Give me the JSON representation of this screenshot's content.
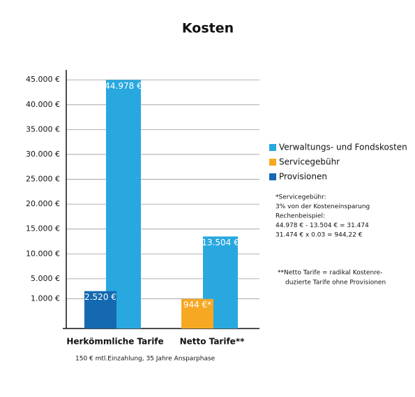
{
  "chart_data": {
    "type": "bar",
    "title": "Kosten",
    "categories": [
      "Herkömmliche Tarife",
      "Netto Tarife**"
    ],
    "series": [
      {
        "name": "Verwaltungs- und Fondskosten",
        "color": "#29a8e0",
        "values": [
          44978,
          13504
        ],
        "value_labels": [
          "44.978 €",
          "13.504 €"
        ]
      },
      {
        "name": "Servicegebühr",
        "color": "#f7a823",
        "values": [
          null,
          944
        ],
        "value_labels": [
          null,
          "944 €*"
        ]
      },
      {
        "name": "Provisionen",
        "color": "#1469b0",
        "values": [
          2520,
          null
        ],
        "value_labels": [
          "2.520 €",
          null
        ]
      }
    ],
    "ylim": [
      -5000,
      47000
    ],
    "yticks": [
      {
        "value": 1000,
        "label": "1.000 €"
      },
      {
        "value": 5000,
        "label": "5.000 €"
      },
      {
        "value": 10000,
        "label": "10.000 €"
      },
      {
        "value": 15000,
        "label": "15.000 €"
      },
      {
        "value": 20000,
        "label": "20.000 €"
      },
      {
        "value": 25000,
        "label": "25.000 €"
      },
      {
        "value": 30000,
        "label": "30.000 €"
      },
      {
        "value": 35000,
        "label": "35.000 €"
      },
      {
        "value": 40000,
        "label": "40.000 €"
      },
      {
        "value": 45000,
        "label": "45.000 €"
      }
    ],
    "grid": true,
    "legend": "right",
    "footnote": "150 € mtl.Einzahlung, 35 Jahre Ansparphase",
    "notes": [
      "*Servicegebühr:",
      "3% von der Kosteneinsparung",
      "Rechenbeispiel:",
      "44.978 € - 13.504 € = 31.474",
      "31.474 € x 0.03 = 944,22 €"
    ],
    "notes2": [
      "**Netto Tarife = radikal Kostenre-",
      "duzierte Tarife ohne Provisionen"
    ]
  }
}
